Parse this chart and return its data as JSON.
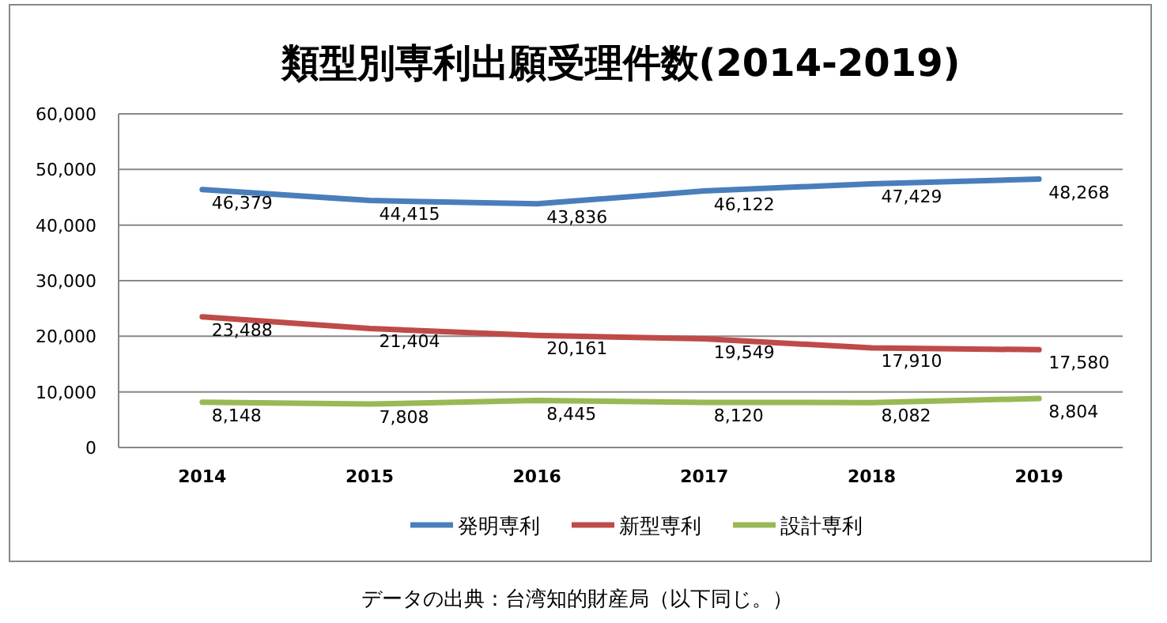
{
  "chart_data": {
    "type": "line",
    "title": "類型別専利出願受理件数(2014-2019)",
    "categories": [
      "2014",
      "2015",
      "2016",
      "2017",
      "2018",
      "2019"
    ],
    "series": [
      {
        "name": "発明専利",
        "color": "#4a7ebb",
        "values": [
          46379,
          44415,
          43836,
          46122,
          47429,
          48268
        ],
        "value_labels": [
          "46,379",
          "44,415",
          "43,836",
          "46,122",
          "47,429",
          "48,268"
        ]
      },
      {
        "name": "新型専利",
        "color": "#be4b48",
        "values": [
          23488,
          21404,
          20161,
          19549,
          17910,
          17580
        ],
        "value_labels": [
          "23,488",
          "21,404",
          "20,161",
          "19,549",
          "17,910",
          "17,580"
        ]
      },
      {
        "name": "設計専利",
        "color": "#98b954",
        "values": [
          8148,
          7808,
          8445,
          8120,
          8082,
          8804
        ],
        "value_labels": [
          "8,148",
          "7,808",
          "8,445",
          "8,120",
          "8,082",
          "8,804"
        ]
      }
    ],
    "ylim": [
      0,
      60000
    ],
    "yticks": [
      {
        "value": 0,
        "label": "0"
      },
      {
        "value": 10000,
        "label": "10,000"
      },
      {
        "value": 20000,
        "label": "20,000"
      },
      {
        "value": 30000,
        "label": "30,000"
      },
      {
        "value": 40000,
        "label": "40,000"
      },
      {
        "value": 50000,
        "label": "50,000"
      },
      {
        "value": 60000,
        "label": "60,000"
      }
    ],
    "grid": "y",
    "legend": "bottom",
    "marker": "none",
    "line_style": "solid",
    "annotations": [
      "データの出典：台湾知的財産局（以下同じ。）"
    ]
  }
}
